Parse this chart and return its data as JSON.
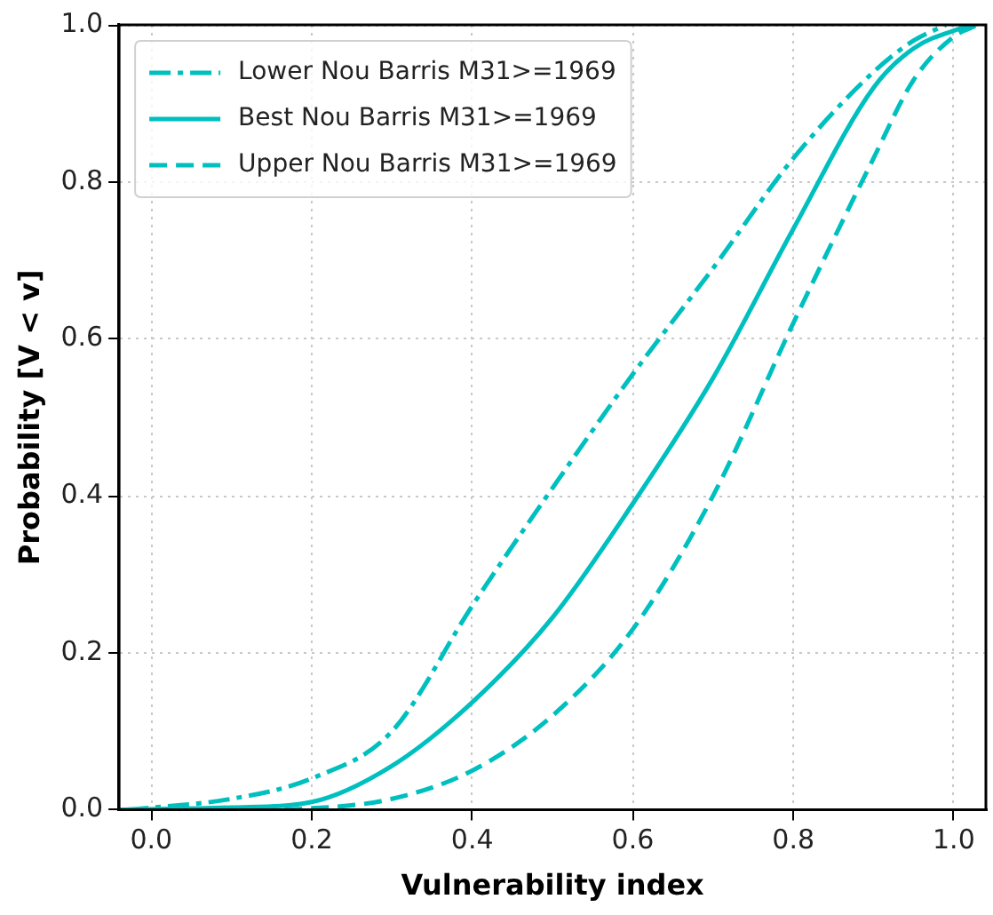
{
  "chart_data": {
    "type": "line",
    "xlabel": "Vulnerability index",
    "ylabel": "Probability [V < v]",
    "xlim": [
      -0.04,
      1.04
    ],
    "ylim": [
      0,
      1
    ],
    "xticks": [
      {
        "value": 0,
        "label": "0.0"
      },
      0.2,
      0.4,
      0.6,
      0.8,
      {
        "value": 1,
        "label": "1.0"
      }
    ],
    "yticks": [
      {
        "value": 0,
        "label": "0.0"
      },
      0.2,
      0.4,
      0.6,
      0.8,
      {
        "value": 1,
        "label": "1.0"
      }
    ],
    "grid": true,
    "legend": "top left",
    "marker": "none",
    "series": [
      {
        "name": "Lower Nou Barris M31>=1969",
        "color": "#00bfbf",
        "line_style": "dashdot",
        "x": [
          -0.03,
          0.1,
          0.2,
          0.3,
          0.4,
          0.5,
          0.6,
          0.7,
          0.8,
          0.9,
          0.95,
          0.99
        ],
        "values": [
          0,
          0.014,
          0.04,
          0.1,
          0.26,
          0.41,
          0.555,
          0.69,
          0.83,
          0.94,
          0.98,
          1.0
        ]
      },
      {
        "name": "Best Nou Barris M31>=1969",
        "color": "#00bfbf",
        "line_style": "solid",
        "x": [
          -0.04,
          0.1,
          0.2,
          0.3,
          0.4,
          0.5,
          0.6,
          0.7,
          0.8,
          0.9,
          0.95,
          1.02
        ],
        "values": [
          0,
          0.003,
          0.01,
          0.056,
          0.137,
          0.245,
          0.39,
          0.55,
          0.74,
          0.92,
          0.97,
          1.0
        ]
      },
      {
        "name": "Upper Nou Barris M31>=1969",
        "color": "#00bfbf",
        "line_style": "dashed",
        "x": [
          0.0,
          0.1,
          0.2,
          0.3,
          0.4,
          0.5,
          0.6,
          0.7,
          0.8,
          0.9,
          0.95,
          1.0,
          1.03
        ],
        "values": [
          0,
          0,
          0.002,
          0.014,
          0.05,
          0.12,
          0.23,
          0.4,
          0.62,
          0.83,
          0.93,
          0.985,
          1.0
        ]
      }
    ]
  }
}
